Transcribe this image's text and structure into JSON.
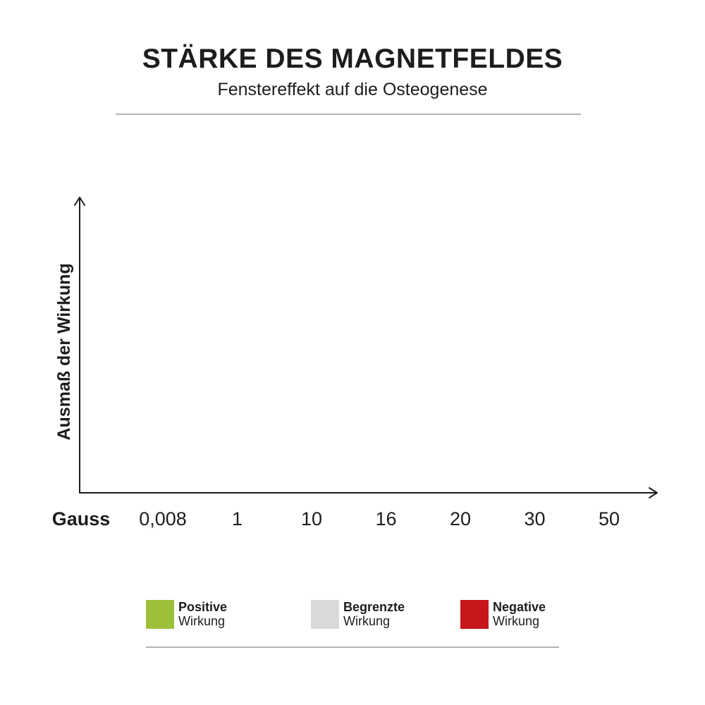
{
  "header": {
    "title": "STÄRKE DES MAGNETFELDES",
    "subtitle": "Fenstereffekt auf die Osteogenese"
  },
  "chart_data": {
    "type": "bar",
    "title": "STÄRKE DES MAGNETFELDES",
    "subtitle": "Fenstereffekt auf die Osteogenese",
    "xlabel": "Gauss",
    "ylabel": "Ausmaß der Wirkung",
    "categories": [
      "0,008",
      "1",
      "10",
      "16",
      "20",
      "30",
      "50"
    ],
    "series": [],
    "grid": false,
    "legend_position": "bottom"
  },
  "legend": {
    "items": [
      {
        "line1": "Positive",
        "line2": "Wirkung",
        "color": "#9dc03a"
      },
      {
        "line1": "Begrenzte",
        "line2": "Wirkung",
        "color": "#d9d9d9"
      },
      {
        "line1": "Negative",
        "line2": "Wirkung",
        "color": "#c8161d"
      }
    ]
  },
  "colors": {
    "text": "#1d1d1b",
    "axis": "#1d1d1b",
    "rule": "#b3b3b3"
  }
}
